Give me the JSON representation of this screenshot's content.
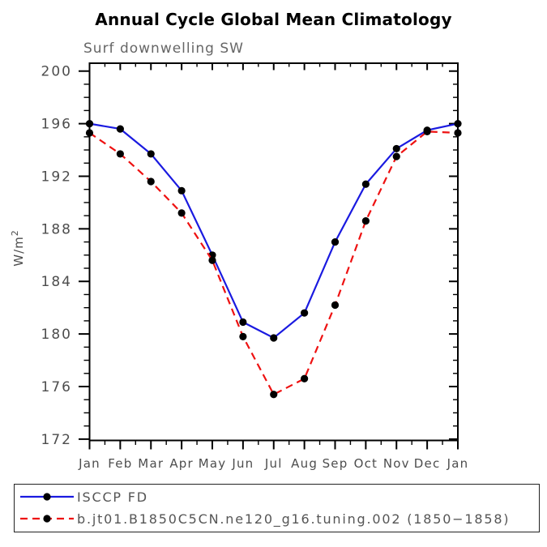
{
  "header": {
    "title": "Annual Cycle Global Mean Climatology",
    "subtitle": "Surf downwelling SW"
  },
  "y_axis": {
    "label_base": "W/m",
    "label_sup": "2"
  },
  "chart_data": {
    "type": "line",
    "title": "Annual Cycle Global Mean Climatology",
    "subtitle": "Surf downwelling SW",
    "xlabel": "",
    "ylabel": "W/m^2",
    "categories": [
      "Jan",
      "Feb",
      "Mar",
      "Apr",
      "May",
      "Jun",
      "Jul",
      "Aug",
      "Sep",
      "Oct",
      "Nov",
      "Dec",
      "Jan"
    ],
    "y_ticks": [
      172,
      176,
      180,
      184,
      188,
      192,
      196,
      200
    ],
    "y_minor_interval": 1,
    "ylim": [
      171.9,
      200.6
    ],
    "grid": false,
    "legend_position": "bottom-box",
    "series": [
      {
        "name": "ISCCP FD",
        "color": "#1a1ae0",
        "line_style": "solid",
        "marker": "filled-circle",
        "marker_color": "#000000",
        "values": [
          196.0,
          195.6,
          193.7,
          190.9,
          186.0,
          180.9,
          179.7,
          181.6,
          187.0,
          191.4,
          194.1,
          195.5,
          196.0
        ]
      },
      {
        "name": "b.jt01.B1850C5CN.ne120_g16.tuning.002 (1850−1858)",
        "color": "#ee1111",
        "line_style": "dashed",
        "marker": "filled-circle",
        "marker_color": "#000000",
        "values": [
          195.3,
          193.7,
          191.6,
          189.2,
          185.6,
          179.8,
          175.4,
          176.6,
          182.2,
          188.6,
          193.5,
          195.4,
          195.3
        ]
      }
    ]
  },
  "colors": {
    "frame": "#000000",
    "axis_text": "#4d4d4d",
    "subtitle_text": "#666666",
    "legend_text": "#555555",
    "title_text": "#000000"
  }
}
